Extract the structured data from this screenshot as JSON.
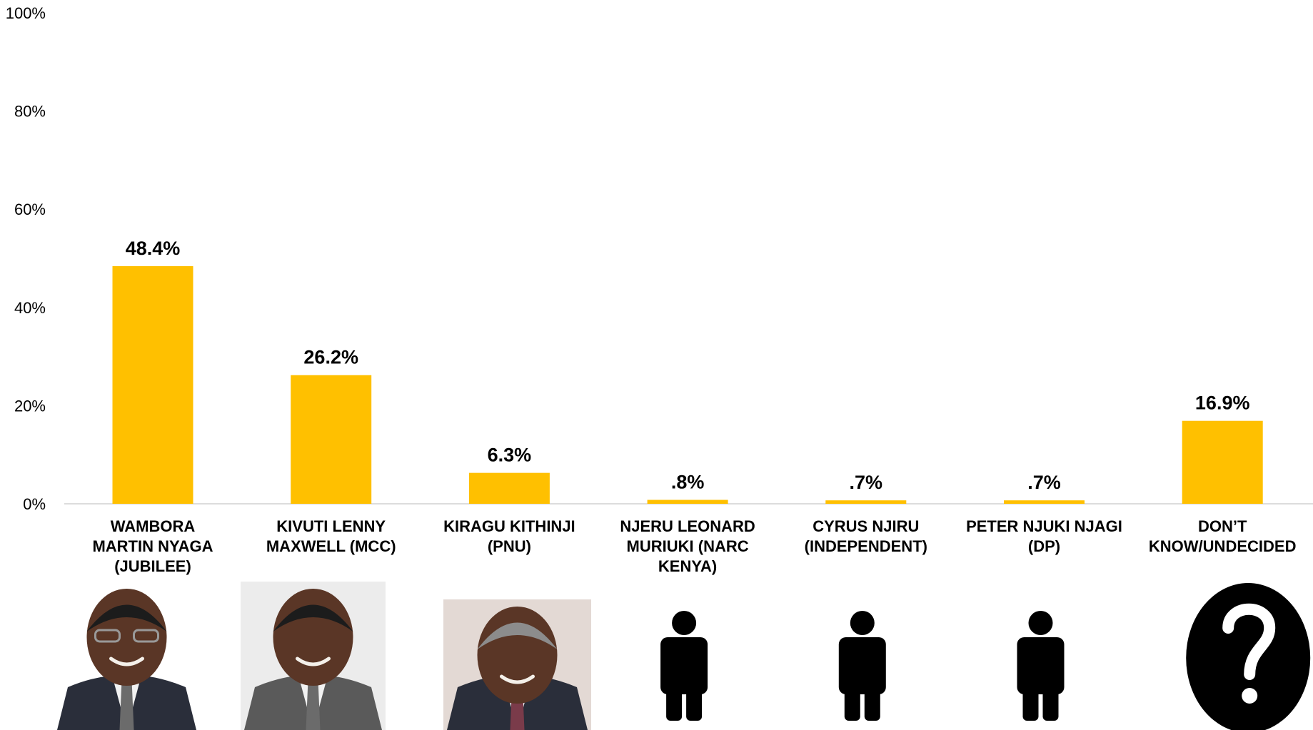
{
  "chart_data": {
    "type": "bar",
    "title": "",
    "xlabel": "",
    "ylabel": "",
    "ylim": [
      0,
      100
    ],
    "yticks": [
      "0%",
      "20%",
      "40%",
      "60%",
      "80%",
      "100%"
    ],
    "grid": false,
    "bar_color": "#FFC000",
    "categories": [
      [
        "WAMBORA",
        "MARTIN NYAGA",
        "(JUBILEE)"
      ],
      [
        "KIVUTI LENNY",
        "MAXWELL (MCC)"
      ],
      [
        "KIRAGU KITHINJI",
        "(PNU)"
      ],
      [
        "NJERU LEONARD",
        "MURIUKI (NARC",
        "KENYA)"
      ],
      [
        "CYRUS NJIRU",
        "(INDEPENDENT)"
      ],
      [
        "PETER NJUKI NJAGI",
        "(DP)"
      ],
      [
        "DON’T",
        "KNOW/UNDECIDED"
      ]
    ],
    "values": [
      48.4,
      26.2,
      6.3,
      0.8,
      0.7,
      0.7,
      16.9
    ],
    "value_labels": [
      "48.4%",
      "26.2%",
      "6.3%",
      ".8%",
      ".7%",
      ".7%",
      "16.9%"
    ],
    "pictures": [
      "candidate-photo",
      "candidate-photo",
      "candidate-photo",
      "person-icon",
      "person-icon",
      "person-icon",
      "question-mark-icon"
    ]
  }
}
